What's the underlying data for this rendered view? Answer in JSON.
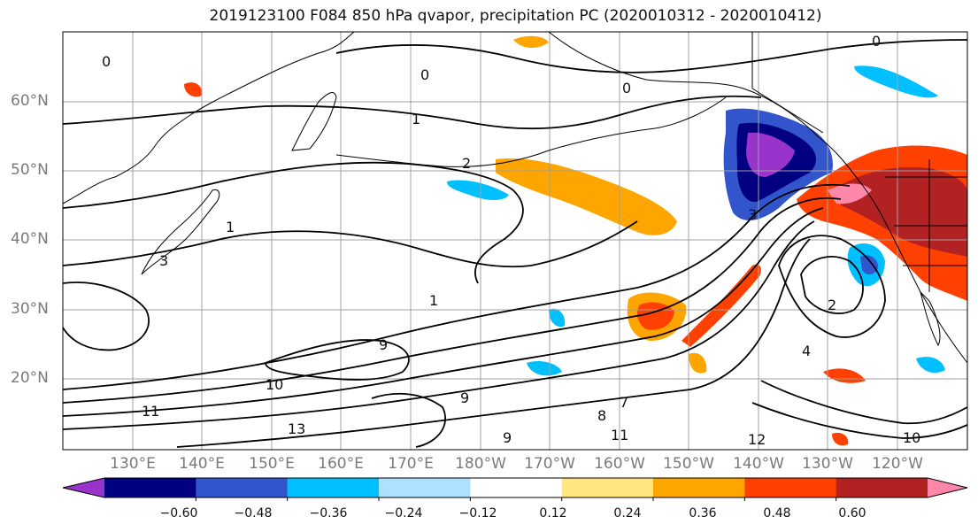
{
  "title": "2019123100 F084 850 hPa qvapor, precipitation PC (2020010312 - 2020010412)",
  "lat_labels": [
    "60°N",
    "50°N",
    "40°N",
    "30°N",
    "20°N"
  ],
  "lon_labels": [
    "130°E",
    "140°E",
    "150°E",
    "160°E",
    "170°E",
    "180°W",
    "170°W",
    "160°W",
    "150°W",
    "140°W",
    "130°W",
    "120°W"
  ],
  "contour_labels": [
    "0",
    "0",
    "0",
    "0",
    "1",
    "1",
    "1",
    "2",
    "2",
    "3",
    "3",
    "4",
    "7",
    "8",
    "9",
    "9",
    "9",
    "10",
    "10",
    "11",
    "11",
    "12",
    "13"
  ],
  "colorbar": {
    "ticks": [
      "−0.60",
      "−0.48",
      "−0.36",
      "−0.24",
      "−0.12",
      "0.12",
      "0.24",
      "0.36",
      "0.48",
      "0.60"
    ],
    "colors": [
      "#9933cc",
      "#000080",
      "#3355cc",
      "#00bfff",
      "#b0e0ff",
      "#ffffff",
      "#ffe680",
      "#ffa500",
      "#ff4000",
      "#b22222",
      "#ff88aa"
    ]
  }
}
